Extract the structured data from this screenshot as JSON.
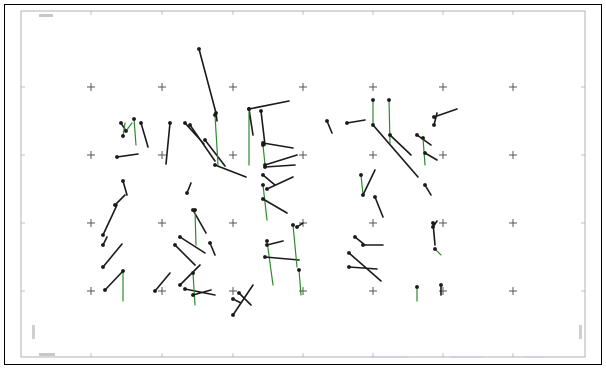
{
  "colors": {
    "frame": "#000000",
    "sheet_border": "#b0b0b0",
    "cross": "#555555",
    "vector_dark": "#1a1a1a",
    "vector_green": "#2f8a2f"
  },
  "footer": {
    "texts": [
      "",
      "",
      ""
    ]
  }
}
